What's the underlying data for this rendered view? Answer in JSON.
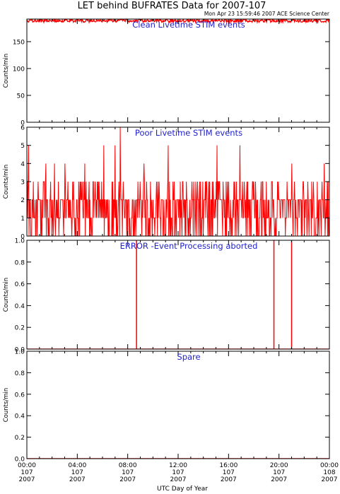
{
  "figure": {
    "title": "LET behind BUFRATES Data for 2007-107",
    "timestamp": "Mon Apr 23 15:59:46 2007 ACE Science Center",
    "xlabel": "UTC Day of Year",
    "x_ticks": [
      {
        "hour": 0,
        "time": "00:00",
        "doy": "107",
        "year": "2007"
      },
      {
        "hour": 4,
        "time": "04:00",
        "doy": "107",
        "year": "2007"
      },
      {
        "hour": 8,
        "time": "08:00",
        "doy": "107",
        "year": "2007"
      },
      {
        "hour": 12,
        "time": "12:00",
        "doy": "107",
        "year": "2007"
      },
      {
        "hour": 16,
        "time": "16:00",
        "doy": "107",
        "year": "2007"
      },
      {
        "hour": 20,
        "time": "20:00",
        "doy": "107",
        "year": "2007"
      },
      {
        "hour": 24,
        "time": "00:00",
        "doy": "108",
        "year": "2007"
      }
    ],
    "colors": {
      "data": "#ff0000",
      "panel_label": "#2222cc",
      "axes": "#000000"
    }
  },
  "chart_data": [
    {
      "type": "line",
      "panel_label": "Clean Livetime STIM events",
      "ylabel": "Counts/min",
      "xlim": [
        0,
        24
      ],
      "ylim": [
        0,
        192
      ],
      "y_ticks": [
        0,
        50,
        100,
        150
      ],
      "series": [
        {
          "values_summary": {
            "mean": 189,
            "min": 186,
            "max": 192
          }
        }
      ]
    },
    {
      "type": "line",
      "panel_label": "Poor Livetime STIM events",
      "ylabel": "Counts/min",
      "xlim": [
        0,
        24
      ],
      "ylim": [
        0,
        6
      ],
      "y_ticks": [
        0,
        1,
        2,
        3,
        4,
        5,
        6
      ],
      "series": [
        {
          "values_summary": {
            "min": 0,
            "max": 6,
            "typical": [
              0,
              1,
              2,
              3
            ]
          },
          "peaks": [
            {
              "x": 0.15,
              "y": 5
            },
            {
              "x": 1.5,
              "y": 4
            },
            {
              "x": 2.2,
              "y": 4
            },
            {
              "x": 3.0,
              "y": 4
            },
            {
              "x": 4.6,
              "y": 4
            },
            {
              "x": 6.1,
              "y": 5
            },
            {
              "x": 7.0,
              "y": 5
            },
            {
              "x": 7.4,
              "y": 6
            },
            {
              "x": 9.3,
              "y": 4
            },
            {
              "x": 11.2,
              "y": 5
            },
            {
              "x": 15.1,
              "y": 5
            },
            {
              "x": 16.9,
              "y": 5
            },
            {
              "x": 21.0,
              "y": 4
            },
            {
              "x": 23.6,
              "y": 4
            }
          ]
        }
      ]
    },
    {
      "type": "line",
      "panel_label": "ERROR -Event Processing aborted",
      "ylabel": "Counts/min",
      "xlim": [
        0,
        24
      ],
      "ylim": [
        0,
        1
      ],
      "y_ticks": [
        0.0,
        0.2,
        0.4,
        0.6,
        0.8,
        1.0
      ],
      "series": [
        {
          "baseline": 0,
          "spikes": [
            {
              "x": 8.7,
              "y": 1
            },
            {
              "x": 19.6,
              "y": 1
            },
            {
              "x": 21.0,
              "y": 1
            }
          ]
        }
      ]
    },
    {
      "type": "line",
      "panel_label": "Spare",
      "ylabel": "Counts/min",
      "xlim": [
        0,
        24
      ],
      "ylim": [
        0,
        1
      ],
      "y_ticks": [
        0.0,
        0.2,
        0.4,
        0.6,
        0.8,
        1.0
      ],
      "series": [
        {
          "baseline": 0
        }
      ]
    }
  ]
}
